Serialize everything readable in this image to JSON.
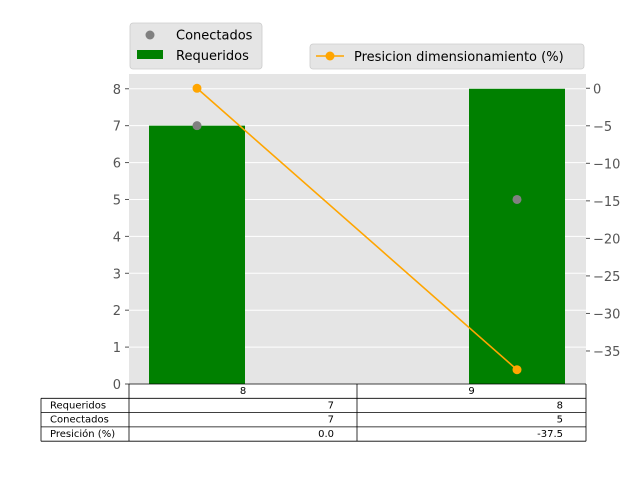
{
  "chart_data": {
    "type": "bar",
    "categories": [
      "8",
      "9"
    ],
    "series": [
      {
        "name": "Requeridos",
        "kind": "bar",
        "axis": "left",
        "color": "#008000",
        "values": [
          7,
          8
        ]
      },
      {
        "name": "Conectados",
        "kind": "scatter",
        "axis": "left",
        "color": "#808080",
        "values": [
          7,
          5
        ]
      },
      {
        "name": "Presicion dimensionamiento (%)",
        "kind": "line",
        "axis": "right",
        "color": "#ffa500",
        "values": [
          0.0,
          -37.5
        ]
      }
    ],
    "y_left": {
      "ticks": [
        0,
        1,
        2,
        3,
        4,
        5,
        6,
        7,
        8
      ],
      "lim": [
        0,
        8.4
      ]
    },
    "y_right": {
      "ticks": [
        0,
        -5,
        -10,
        -15,
        -20,
        -25,
        -30,
        -35
      ],
      "tick_labels": [
        "0",
        "−5",
        "−10",
        "−15",
        "−20",
        "−25",
        "−30",
        "−35"
      ],
      "lim": [
        -39.4,
        1.9
      ]
    },
    "grid": true,
    "background": "#e5e5e5",
    "legend_left": [
      "Conectados",
      "Requeridos"
    ],
    "legend_right": [
      "Presicion dimensionamiento (%)"
    ],
    "table": {
      "columns": [
        "8",
        "9"
      ],
      "rows": [
        {
          "label": "Requeridos",
          "cells": [
            "7",
            "8"
          ]
        },
        {
          "label": "Conectados",
          "cells": [
            "7",
            "5"
          ]
        },
        {
          "label": "Presición (%)",
          "cells": [
            "0.0",
            "-37.5"
          ]
        }
      ]
    }
  }
}
